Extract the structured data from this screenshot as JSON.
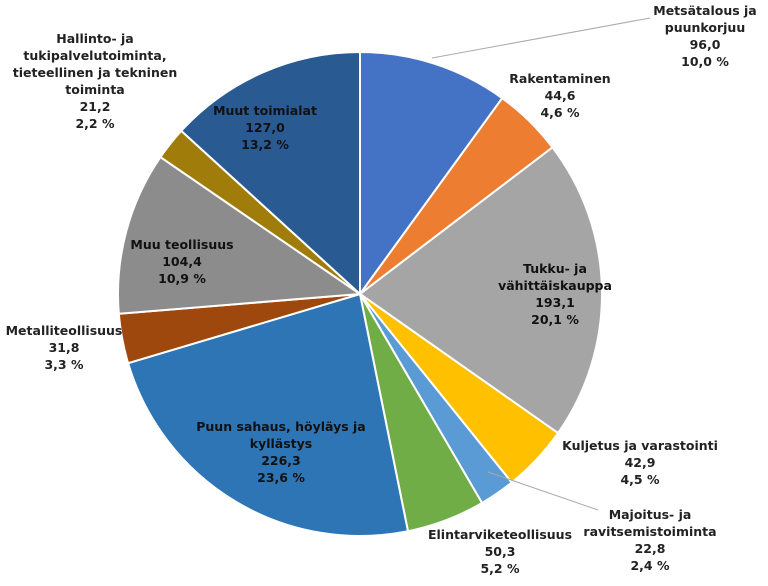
{
  "chart_data": {
    "type": "pie",
    "title": "",
    "start_angle": "12 o'clock, clockwise",
    "slices": [
      {
        "name": "Metsätalous ja puunkorjuu",
        "lines": [
          "Metsätalous ja",
          "puunkorjuu"
        ],
        "value": 96.0,
        "value_label": "96,0",
        "percent": 10.0,
        "percent_label": "10,0 %",
        "color": "#4472C4"
      },
      {
        "name": "Rakentaminen",
        "lines": [
          "Rakentaminen"
        ],
        "value": 44.6,
        "value_label": "44,6",
        "percent": 4.6,
        "percent_label": "4,6 %",
        "color": "#ED7D31"
      },
      {
        "name": "Tukku- ja vähittäiskauppa",
        "lines": [
          "Tukku- ja",
          "vähittäiskauppa"
        ],
        "value": 193.1,
        "value_label": "193,1",
        "percent": 20.1,
        "percent_label": "20,1 %",
        "color": "#A5A5A5"
      },
      {
        "name": "Kuljetus ja varastointi",
        "lines": [
          "Kuljetus ja varastointi"
        ],
        "value": 42.9,
        "value_label": "42,9",
        "percent": 4.5,
        "percent_label": "4,5 %",
        "color": "#FFC000"
      },
      {
        "name": "Majoitus- ja ravitsemistoiminta",
        "lines": [
          "Majoitus- ja",
          "ravitsemistoiminta"
        ],
        "value": 22.8,
        "value_label": "22,8",
        "percent": 2.4,
        "percent_label": "2,4 %",
        "color": "#5B9BD5"
      },
      {
        "name": "Elintarviketeollisuus",
        "lines": [
          "Elintarviketeollisuus"
        ],
        "value": 50.3,
        "value_label": "50,3",
        "percent": 5.2,
        "percent_label": "5,2 %",
        "color": "#70AD47"
      },
      {
        "name": "Puun sahaus, höyläys ja kyllästys",
        "lines": [
          "Puun sahaus, höyläys ja",
          "kyllästys"
        ],
        "value": 226.3,
        "value_label": "226,3",
        "percent": 23.6,
        "percent_label": "23,6 %",
        "color": "#2E75B6"
      },
      {
        "name": "Metalliteollisuus",
        "lines": [
          "Metalliteollisuus"
        ],
        "value": 31.8,
        "value_label": "31,8",
        "percent": 3.3,
        "percent_label": "3,3 %",
        "color": "#9E480E"
      },
      {
        "name": "Muu teollisuus",
        "lines": [
          "Muu teollisuus"
        ],
        "value": 104.4,
        "value_label": "104,4",
        "percent": 10.9,
        "percent_label": "10,9 %",
        "color": "#8C8C8C"
      },
      {
        "name": "Hallinto- ja tukipalvelutoiminta, tieteellinen ja tekninen toiminta",
        "lines": [
          "Hallinto- ja",
          "tukipalvelutoiminta,",
          "tieteellinen ja tekninen",
          "toiminta"
        ],
        "value": 21.2,
        "value_label": "21,2",
        "percent": 2.2,
        "percent_label": "2,2 %",
        "color": "#A07C0A"
      },
      {
        "name": "Muut toimialat",
        "lines": [
          "Muut toimialat"
        ],
        "value": 127.0,
        "value_label": "127,0",
        "percent": 13.2,
        "percent_label": "13,2 %",
        "color": "#2A5A92"
      }
    ]
  }
}
